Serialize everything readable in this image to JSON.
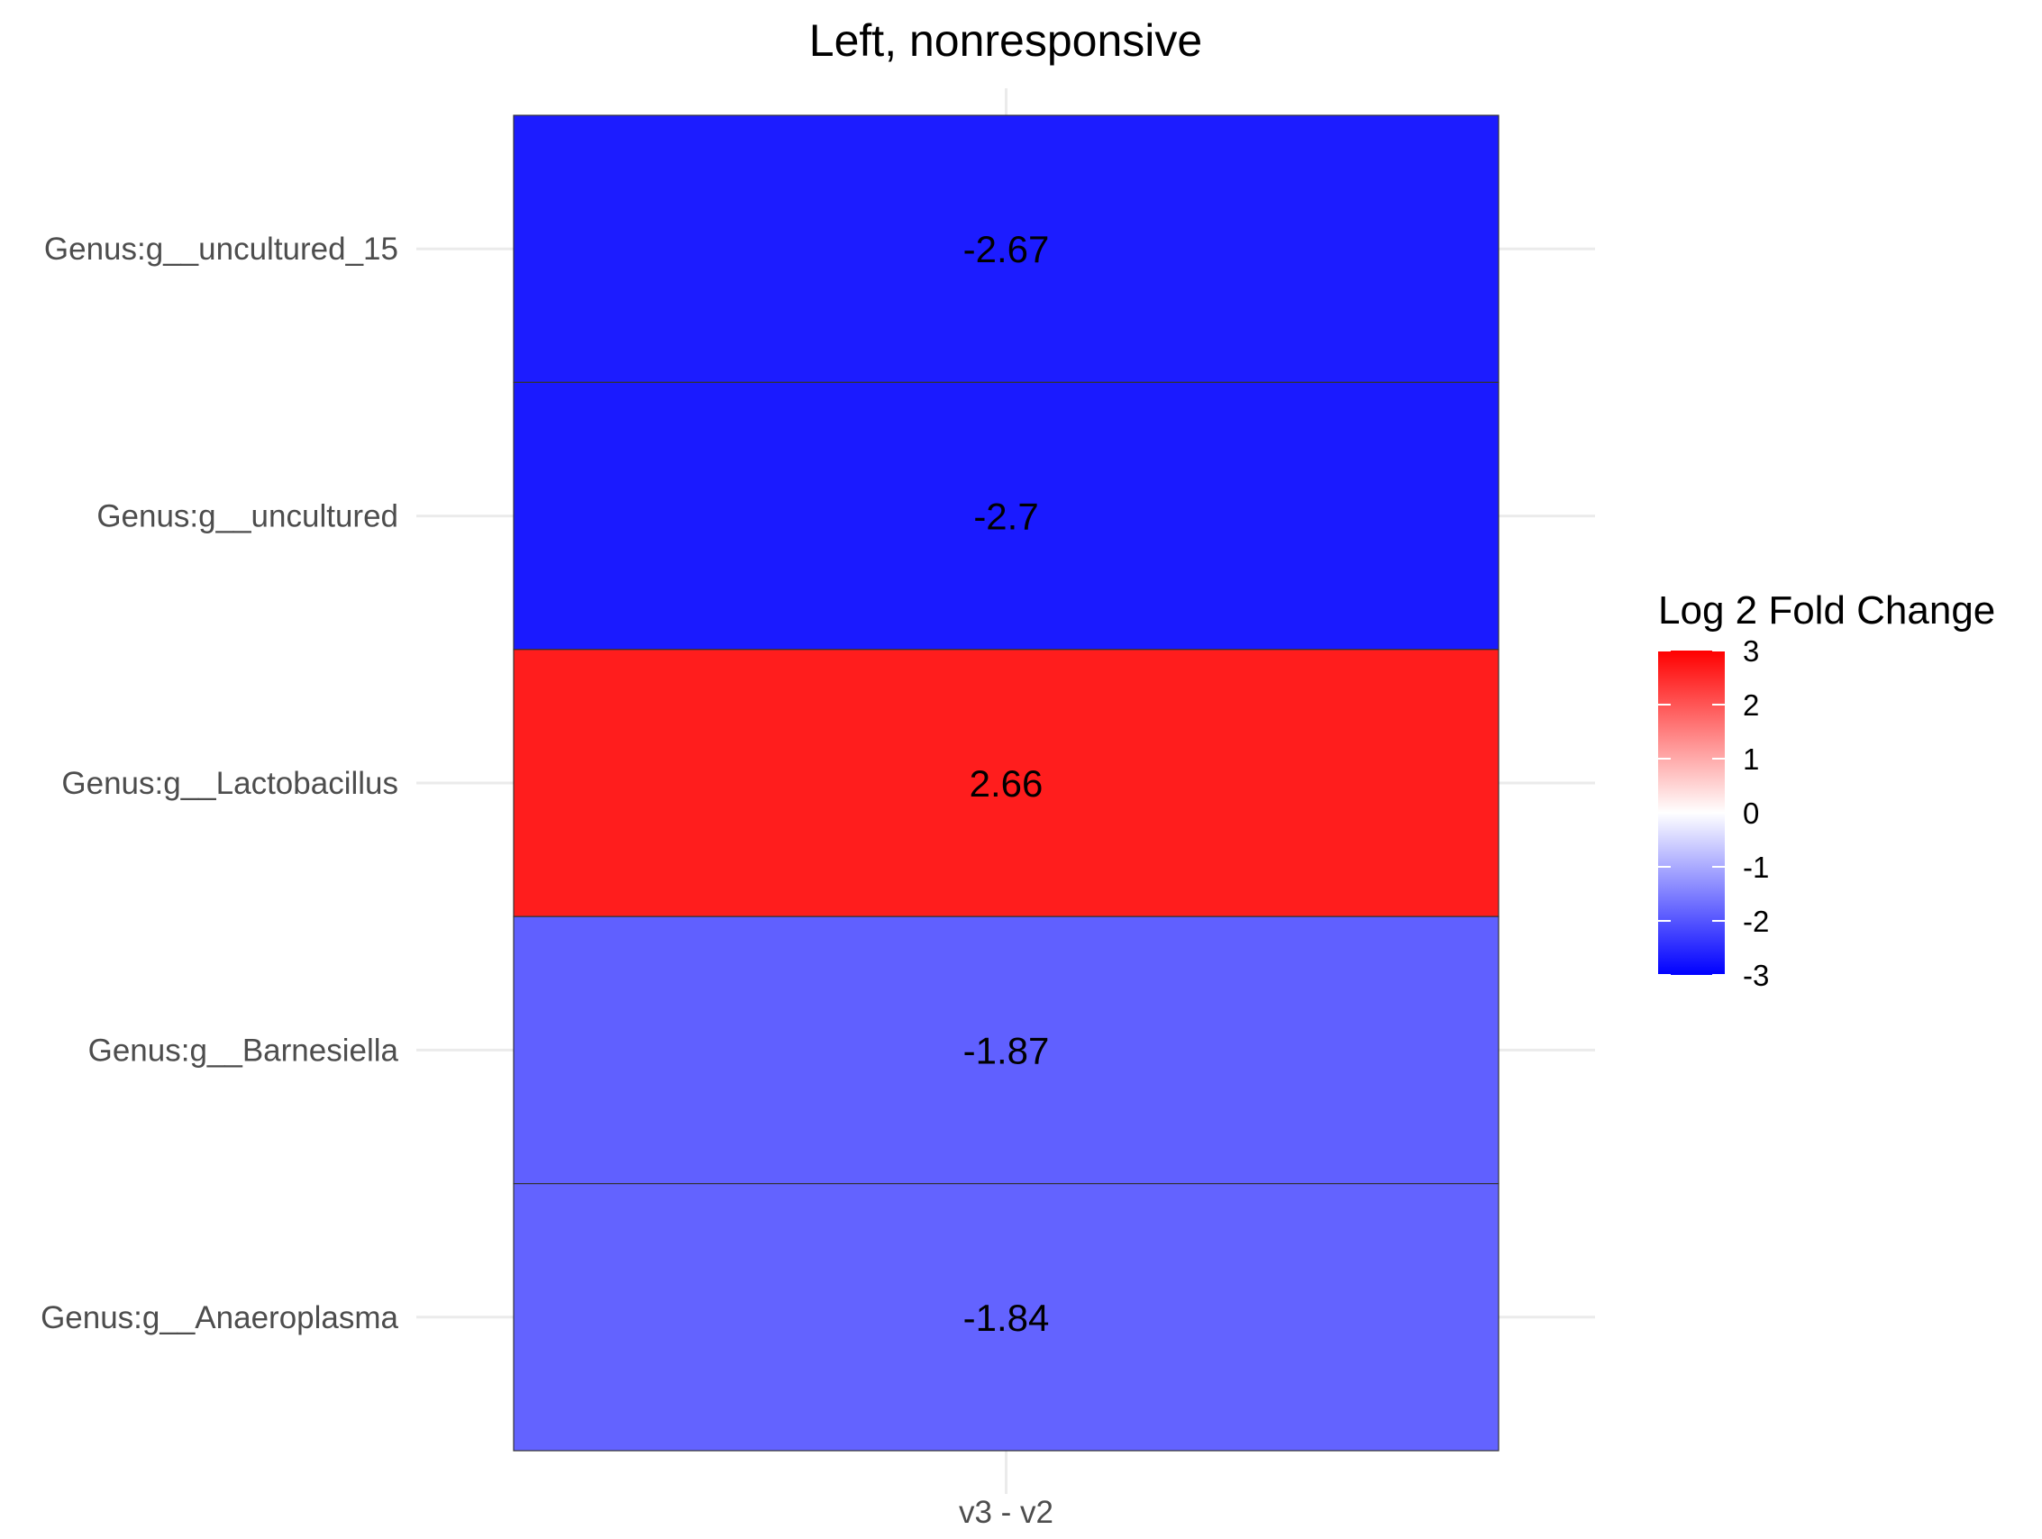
{
  "chart_data": {
    "type": "heatmap",
    "title": "Left, nonresponsive",
    "x_categories": [
      "v3 - v2"
    ],
    "y_categories": [
      "Genus:g__uncultured_15",
      "Genus:g__uncultured",
      "Genus:g__Lactobacillus",
      "Genus:g__Barnesiella",
      "Genus:g__Anaeroplasma"
    ],
    "values": [
      -2.67,
      -2.7,
      2.66,
      -1.87,
      -1.84
    ],
    "value_labels": [
      "-2.67",
      "-2.7",
      "2.66",
      "-1.87",
      "-1.84"
    ],
    "xlabel": "",
    "ylabel": "",
    "grid": true,
    "legend": {
      "title": "Log 2 Fold Change",
      "placement": "right",
      "ticks": [
        "3",
        "2",
        "1",
        "0",
        "-1",
        "-2",
        "-3"
      ],
      "range": [
        -3,
        3
      ]
    },
    "colors": {
      "low": "#0000ff",
      "mid": "#ffffff",
      "high": "#ff0000"
    }
  }
}
